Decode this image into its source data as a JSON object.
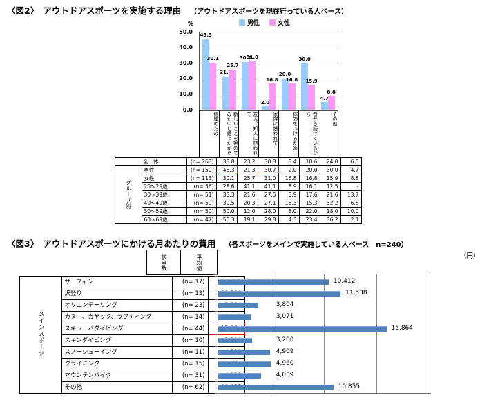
{
  "fig2": {
    "title": "〈図2〉　アウトドアスポーツを実施する理由",
    "subtitle": "（アウトドアスポーツを現在行っている人ベース）",
    "percent_label": "%",
    "y_ticks": [
      "50.0",
      "40.0",
      "30.0",
      "20.0",
      "10.0",
      "0.0"
    ],
    "table": {
      "group_label": "グループ別",
      "total_label": "全　体",
      "rows": [
        {
          "label": "全　体",
          "n": "(n= 263)",
          "values": [
            "38.8",
            "23.2",
            "30.8",
            "8.4",
            "18.6",
            "24.0",
            "6.5"
          ]
        },
        {
          "label": "男性",
          "n": "(n= 150)",
          "values": [
            "45.3",
            "21.3",
            "30.7",
            "2.0",
            "20.0",
            "30.0",
            "4.7"
          ],
          "highlight": [
            0,
            2
          ]
        },
        {
          "label": "女性",
          "n": "(n= 113)",
          "values": [
            "30.1",
            "25.7",
            "31.0",
            "16.8",
            "16.8",
            "15.9",
            "8.8"
          ]
        },
        {
          "label": "20～29歳",
          "n": "(n= 56)",
          "values": [
            "28.6",
            "41.1",
            "41.1",
            "8.9",
            "16.1",
            "12.5",
            "-"
          ]
        },
        {
          "label": "30～39歳",
          "n": "(n= 51)",
          "values": [
            "33.3",
            "21.6",
            "27.5",
            "3.9",
            "17.6",
            "21.6",
            "13.7"
          ]
        },
        {
          "label": "40～49歳",
          "n": "(n= 59)",
          "values": [
            "30.5",
            "20.3",
            "27.1",
            "15.3",
            "15.3",
            "32.2",
            "6.8"
          ]
        },
        {
          "label": "50～59歳",
          "n": "(n= 50)",
          "values": [
            "50.0",
            "12.0",
            "28.0",
            "8.0",
            "22.0",
            "18.0",
            "10.0"
          ]
        },
        {
          "label": "60～69歳",
          "n": "(n= 47)",
          "values": [
            "55.3",
            "19.1",
            "29.8",
            "4.3",
            "23.4",
            "36.2",
            "2.1"
          ]
        }
      ]
    }
  },
  "fig3": {
    "title": "〈図3〉　アウトドアスポーツにかける月あたりの費用",
    "subtitle": "（各スポーツをメインで実施している人ベース　n=240）",
    "unit_label": "（円）",
    "col_headers": [
      "該当数",
      "平均値"
    ],
    "side_label": "メインスポーツ",
    "rows": [
      {
        "label": "サーフィン",
        "n": "(n= 17)"
      },
      {
        "label": "沢登り",
        "n": "(n= 13)"
      },
      {
        "label": "オリエンテーリング",
        "n": "(n= 23)"
      },
      {
        "label": "カヌー、カヤック、ラフティング",
        "n": "(n= 14)"
      },
      {
        "label": "スキューバダイビング",
        "n": "(n= 44)",
        "highlight": true
      },
      {
        "label": "スキンダイビング",
        "n": "(n= 10)"
      },
      {
        "label": "スノーシューイング",
        "n": "(n= 11)"
      },
      {
        "label": "クライミング",
        "n": "(n= 15)"
      },
      {
        "label": "マウンテンバイク",
        "n": "(n= 31)"
      },
      {
        "label": "その他",
        "n": "(n= 62)"
      }
    ]
  },
  "chart_data": [
    {
      "type": "bar",
      "title": "アウトドアスポーツを実施する理由",
      "categories": [
        "健康のため",
        "新しいことを始めてみたいと思ったから",
        "友人、知人に誘われて",
        "家族に誘われて",
        "体力をつけるため",
        "昔から続けているから",
        "その他"
      ],
      "series": [
        {
          "name": "男性",
          "color": "#99CCFF",
          "values": [
            45.3,
            21.3,
            30.7,
            2.0,
            20.0,
            30.0,
            4.7
          ]
        },
        {
          "name": "女性",
          "color": "#FF99F5",
          "values": [
            30.1,
            25.7,
            31.0,
            16.8,
            16.8,
            15.9,
            8.8
          ]
        }
      ],
      "ylabel": "%",
      "ylim": [
        0,
        50
      ],
      "ytick_step": 10,
      "grid": true,
      "legend_position": "top"
    },
    {
      "type": "bar-horizontal",
      "title": "アウトドアスポーツにかける月あたりの費用",
      "categories": [
        "サーフィン",
        "沢登り",
        "オリエンテーリング",
        "カヌー、カヤック、ラフティング",
        "スキューバダイビング",
        "スキンダイビング",
        "スノーシューイング",
        "クライミング",
        "マウンテンバイク",
        "その他"
      ],
      "values": [
        10412,
        11538,
        3804,
        3071,
        15864,
        3200,
        4909,
        4960,
        4039,
        10855
      ],
      "value_labels": [
        "10,412",
        "11,538",
        "3,804",
        "3,071",
        "15,864",
        "3,200",
        "4,909",
        "4,960",
        "4,039",
        "10,855"
      ],
      "bar_color": "#4F81BD",
      "xlim": [
        0,
        20000
      ],
      "gridline_step": 5000,
      "unit": "円",
      "highlight_color": "#FF0000"
    }
  ]
}
